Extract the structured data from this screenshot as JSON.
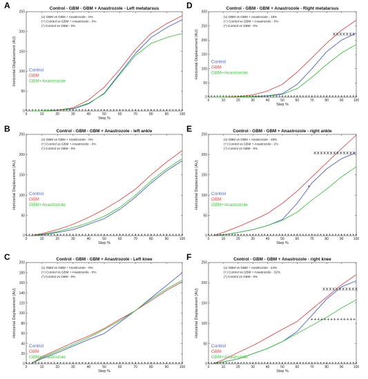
{
  "colors": {
    "Control": "#4a5fc8",
    "GBM": "#e64545",
    "GBM+Anastrozole": "#3cc43c"
  },
  "chart_data": [
    {
      "panel": "A",
      "type": "line",
      "title": "Control - GBM - GBM + Anastrozole - Left metatarsus",
      "xlabel": "Step %",
      "ylabel": "Horizontal Displacement (AU)",
      "xlim": [
        0,
        100
      ],
      "ylim": [
        0,
        250
      ],
      "xticks": [
        0,
        10,
        20,
        30,
        40,
        50,
        60,
        70,
        80,
        90,
        100
      ],
      "yticks": [
        0,
        50,
        100,
        150,
        200,
        250
      ],
      "annotations": [
        "(x) GBM vs GBM + Anastrozole - 0%",
        "(+) Control vs GBM + Anastrozole - 0%",
        "(*) Control vs GBM - 0%"
      ],
      "legend": [
        "Control",
        "GBM",
        "GBM+Anastrozole"
      ],
      "legend_position": "center-left",
      "x": [
        3,
        10,
        20,
        30,
        40,
        50,
        60,
        70,
        80,
        90,
        100
      ],
      "series": [
        {
          "name": "Control",
          "values": [
            0,
            0,
            2,
            5,
            18,
            45,
            95,
            145,
            185,
            210,
            230
          ]
        },
        {
          "name": "GBM",
          "values": [
            0,
            0,
            2,
            8,
            28,
            60,
            105,
            155,
            195,
            220,
            240
          ]
        },
        {
          "name": "GBM+Anastrozole",
          "values": [
            0,
            0,
            2,
            6,
            20,
            43,
            92,
            140,
            170,
            185,
            195
          ]
        }
      ],
      "sig_marks": []
    },
    {
      "panel": "B",
      "type": "line",
      "title": "Control - GBM - GBM + Anastrozole - left ankle",
      "xlabel": "Step %",
      "ylabel": "Horizontal Displacement (AU)",
      "xlim": [
        0,
        100
      ],
      "ylim": [
        0,
        250
      ],
      "xticks": [
        0,
        10,
        20,
        30,
        40,
        50,
        60,
        70,
        80,
        90,
        100
      ],
      "yticks": [
        0,
        50,
        100,
        150,
        200,
        250
      ],
      "annotations": [
        "(x) GBM vs GBM + Anastrozole - 0%",
        "(+) Control vs GBM + Anastrozole - 0%",
        "(*) Control vs GBM - 0%"
      ],
      "legend": [
        "Control",
        "GBM",
        "GBM+Anastrozole"
      ],
      "legend_position": "center-left",
      "x": [
        3,
        10,
        20,
        30,
        40,
        50,
        60,
        70,
        80,
        90,
        100
      ],
      "series": [
        {
          "name": "Control",
          "values": [
            0,
            2,
            8,
            15,
            28,
            42,
            65,
            95,
            130,
            160,
            185
          ]
        },
        {
          "name": "GBM",
          "values": [
            0,
            5,
            15,
            28,
            45,
            65,
            88,
            115,
            150,
            182,
            210
          ]
        },
        {
          "name": "GBM+Anastrozole",
          "values": [
            0,
            3,
            10,
            20,
            32,
            48,
            70,
            100,
            135,
            165,
            190
          ]
        }
      ],
      "sig_marks": []
    },
    {
      "panel": "C",
      "type": "line",
      "title": "Control - GBM - GBM + Anastrozole - Left knee",
      "xlabel": "Step %",
      "ylabel": "Horizontal Displacement (AU)",
      "xlim": [
        0,
        100
      ],
      "ylim": [
        0,
        200
      ],
      "xticks": [
        0,
        10,
        20,
        30,
        40,
        50,
        60,
        70,
        80,
        90,
        100
      ],
      "yticks": [
        0,
        20,
        40,
        60,
        80,
        100,
        120,
        140,
        160,
        180,
        200
      ],
      "annotations": [
        "(x) GBM vs GBM + Anastrozole - 0%",
        "(+) Control vs GBM + Anastrozole - 0%",
        "(*) Control vs GBM - 0%"
      ],
      "legend": [
        "Control",
        "GBM",
        "GBM+Anastrozole"
      ],
      "legend_position": "bottom-left",
      "x": [
        3,
        10,
        20,
        30,
        40,
        50,
        60,
        70,
        80,
        90,
        100
      ],
      "series": [
        {
          "name": "Control",
          "values": [
            0,
            10,
            22,
            35,
            48,
            60,
            82,
            105,
            130,
            155,
            180
          ]
        },
        {
          "name": "GBM",
          "values": [
            0,
            14,
            28,
            42,
            55,
            70,
            88,
            105,
            125,
            145,
            162
          ]
        },
        {
          "name": "GBM+Anastrozole",
          "values": [
            0,
            12,
            25,
            38,
            52,
            68,
            85,
            105,
            128,
            148,
            165
          ]
        }
      ],
      "sig_marks": []
    },
    {
      "panel": "D",
      "type": "line",
      "title": "Control - GBM - GBM + Anastrozole - Right metatarsus",
      "xlabel": "Step %",
      "ylabel": "Horizontal Displacement (AU)",
      "xlim": [
        0,
        100
      ],
      "ylim": [
        0,
        300
      ],
      "xticks": [
        0,
        10,
        20,
        30,
        40,
        50,
        60,
        70,
        80,
        90,
        100
      ],
      "yticks": [
        0,
        50,
        100,
        150,
        200,
        250,
        300
      ],
      "annotations": [
        "(x) GBM vs GBM + Anastrozole - 16%",
        "(+) Control vs GBM + Anastrozole - 0%",
        "(*) Control vs GBM - 0%"
      ],
      "legend": [
        "Control",
        "GBM",
        "GBM+Anastrozole"
      ],
      "legend_position": "center-left",
      "x": [
        3,
        10,
        20,
        30,
        40,
        50,
        60,
        70,
        80,
        90,
        100
      ],
      "series": [
        {
          "name": "Control",
          "values": [
            0,
            0,
            0,
            2,
            5,
            12,
            45,
            100,
            160,
            200,
            225
          ]
        },
        {
          "name": "GBM",
          "values": [
            0,
            0,
            2,
            8,
            22,
            45,
            88,
            138,
            190,
            235,
            270
          ]
        },
        {
          "name": "GBM+Anastrozole",
          "values": [
            0,
            0,
            0,
            2,
            4,
            10,
            30,
            70,
            115,
            155,
            185
          ]
        }
      ],
      "sig_marks": [
        {
          "symbol": "x",
          "from": 85,
          "to": 100,
          "y": 222
        }
      ]
    },
    {
      "panel": "E",
      "type": "line",
      "title": "Control - GBM - GBM + Anastrozole - right ankle",
      "xlabel": "Step %",
      "ylabel": "Horizontal Displacement (AU)",
      "xlim": [
        0,
        100
      ],
      "ylim": [
        0,
        250
      ],
      "xticks": [
        0,
        10,
        20,
        30,
        40,
        50,
        60,
        70,
        80,
        90,
        100
      ],
      "yticks": [
        0,
        50,
        100,
        150,
        200,
        250
      ],
      "annotations": [
        "(x) GBM vs GBM + Anastrozole - 28%",
        "(+) Control vs GBM + Anastrozole - 2%",
        "(*) Control vs GBM - 0%"
      ],
      "legend": [
        "Control",
        "GBM",
        "GBM+Anastrozole"
      ],
      "legend_position": "center-left",
      "x": [
        3,
        10,
        20,
        30,
        40,
        50,
        60,
        70,
        80,
        90,
        100
      ],
      "series": [
        {
          "name": "Control",
          "values": [
            0,
            2,
            8,
            15,
            25,
            40,
            80,
            130,
            165,
            190,
            205
          ]
        },
        {
          "name": "GBM",
          "values": [
            0,
            8,
            22,
            38,
            55,
            80,
            110,
            145,
            180,
            215,
            248
          ]
        },
        {
          "name": "GBM+Anastrozole",
          "values": [
            0,
            2,
            8,
            15,
            25,
            38,
            58,
            88,
            115,
            145,
            170
          ]
        }
      ],
      "sig_marks": [
        {
          "symbol": "x",
          "from": 72,
          "to": 100,
          "y": 205
        },
        {
          "symbol": "+",
          "from": 68,
          "to": 68,
          "y": 122
        }
      ]
    },
    {
      "panel": "F",
      "type": "line",
      "title": "Control - GBM - GBM + Anastrozole - right knee",
      "xlabel": "Step %",
      "ylabel": "Horizontal Displacement (AU)",
      "xlim": [
        0,
        100
      ],
      "ylim": [
        0,
        250
      ],
      "xticks": [
        0,
        10,
        20,
        30,
        40,
        50,
        60,
        70,
        80,
        90,
        100
      ],
      "yticks": [
        0,
        50,
        100,
        150,
        200,
        250
      ],
      "annotations": [
        "(x) GBM vs GBM + Anastrozole - 24%",
        "(+) Control vs GBM + Anastrozole - 32%",
        "(*) Control vs GBM - 0%"
      ],
      "legend": [
        "Control",
        "GBM",
        "GBM+Anastrozole"
      ],
      "legend_position": "bottom-left",
      "x": [
        3,
        10,
        20,
        30,
        40,
        50,
        60,
        70,
        80,
        90,
        100
      ],
      "series": [
        {
          "name": "Control",
          "values": [
            0,
            5,
            12,
            25,
            38,
            55,
            80,
            120,
            160,
            190,
            205
          ]
        },
        {
          "name": "GBM",
          "values": [
            0,
            10,
            28,
            45,
            65,
            85,
            105,
            135,
            165,
            195,
            220
          ]
        },
        {
          "name": "GBM+Anastrozole",
          "values": [
            0,
            5,
            12,
            25,
            38,
            55,
            75,
            95,
            115,
            138,
            158
          ]
        }
      ],
      "sig_marks": [
        {
          "symbol": "x",
          "from": 78,
          "to": 100,
          "y": 185
        },
        {
          "symbol": "+",
          "from": 70,
          "to": 100,
          "y": 110
        }
      ]
    }
  ]
}
